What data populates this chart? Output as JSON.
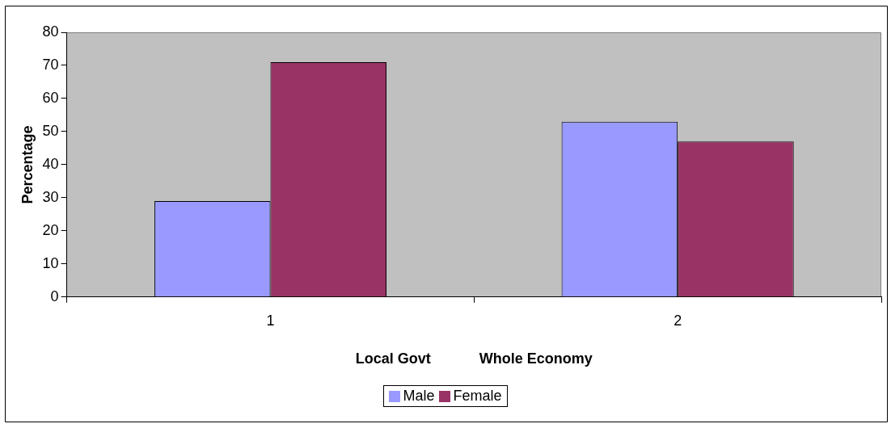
{
  "chart_data": {
    "type": "bar",
    "xlabel": "Local Govt            Whole Economy",
    "ylabel": "Percentage",
    "categories": [
      "1",
      "2"
    ],
    "series": [
      {
        "name": "Male",
        "color": "#9999ff",
        "values": [
          29,
          53
        ]
      },
      {
        "name": "Female",
        "color": "#993366",
        "values": [
          71,
          47
        ]
      }
    ],
    "ylim": [
      0,
      80
    ],
    "yticks": [
      0,
      10,
      20,
      30,
      40,
      50,
      60,
      70,
      80
    ],
    "grid": false,
    "legend": "bottom"
  }
}
